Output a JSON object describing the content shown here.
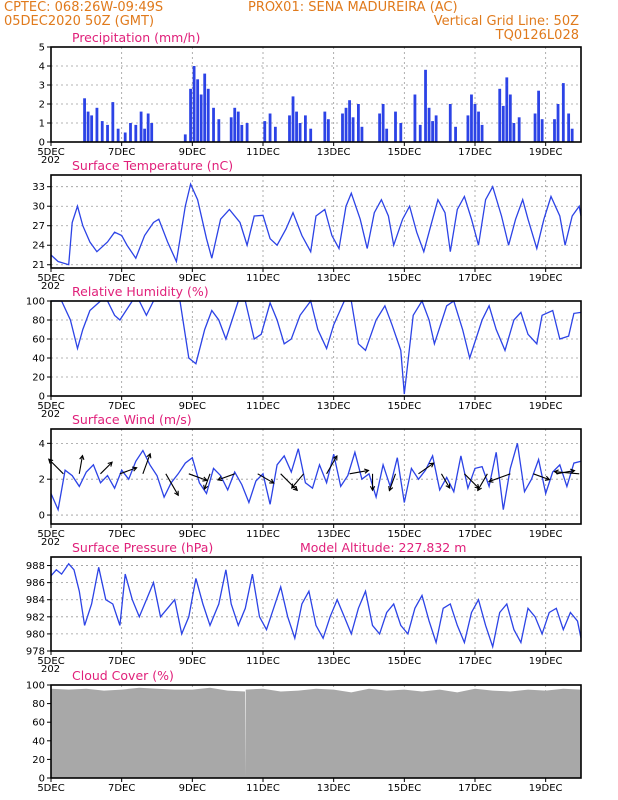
{
  "header": {
    "left_line1": "CPTEC:    068:26W-09:49S",
    "left_line2": "05DEC2020 50Z (GMT)",
    "center_line1": "PROX01: SENA MADUREIRA (AC)",
    "right_line2": "Vertical Grid Line: 50Z",
    "right_line3": "TQ0126L028"
  },
  "colors": {
    "header_text": "#e07a1c",
    "panel_title": "#e0207a",
    "series_line": "#2c43e6",
    "precip_bar": "#2c43e6",
    "wind_arrow": "#000000",
    "cloud_fill": "#a8a8a8"
  },
  "x_axis": {
    "tick_labels": [
      "5DEC",
      "7DEC",
      "9DEC",
      "11DEC",
      "13DEC",
      "15DEC",
      "17DEC",
      "19DEC"
    ],
    "tick_days": [
      5,
      7,
      9,
      11,
      13,
      15,
      17,
      19
    ],
    "year_fragment": "202",
    "start_day": 5,
    "end_day": 20
  },
  "chart_data": [
    {
      "type": "bar",
      "title": "Precipitation (mm/h)",
      "ylim": [
        0,
        5
      ],
      "yticks": [
        0,
        1,
        2,
        3,
        4,
        5
      ],
      "grid": true,
      "x": [
        5.95,
        6.05,
        6.15,
        6.3,
        6.45,
        6.6,
        6.75,
        6.9,
        7.1,
        7.25,
        7.4,
        7.55,
        7.65,
        7.75,
        7.85,
        8.8,
        8.95,
        9.05,
        9.15,
        9.25,
        9.35,
        9.45,
        9.6,
        9.75,
        10.1,
        10.2,
        10.3,
        10.4,
        10.55,
        11.05,
        11.2,
        11.35,
        11.75,
        11.85,
        11.95,
        12.05,
        12.2,
        12.35,
        12.75,
        12.85,
        13.25,
        13.35,
        13.45,
        13.55,
        13.7,
        13.8,
        14.3,
        14.4,
        14.5,
        14.75,
        14.9,
        15.3,
        15.45,
        15.6,
        15.7,
        15.8,
        15.9,
        16.3,
        16.45,
        16.8,
        16.9,
        17.0,
        17.1,
        17.2,
        17.7,
        17.8,
        17.9,
        18.0,
        18.1,
        18.25,
        18.7,
        18.8,
        18.9,
        19.25,
        19.35,
        19.5,
        19.65,
        19.75
      ],
      "values": [
        2.3,
        1.6,
        1.4,
        1.8,
        1.1,
        0.9,
        2.1,
        0.7,
        0.5,
        1.0,
        0.9,
        1.6,
        0.7,
        1.5,
        1.0,
        0.4,
        2.8,
        4.0,
        3.3,
        2.5,
        3.6,
        2.8,
        1.8,
        1.2,
        1.3,
        1.8,
        1.6,
        0.9,
        1.0,
        1.1,
        1.5,
        0.8,
        1.4,
        2.4,
        1.6,
        1.0,
        1.4,
        0.7,
        1.6,
        1.2,
        1.5,
        1.8,
        2.2,
        1.3,
        2.0,
        0.8,
        1.5,
        2.0,
        0.7,
        1.6,
        1.0,
        2.5,
        0.9,
        3.8,
        1.8,
        1.1,
        1.4,
        2.0,
        0.8,
        1.4,
        2.5,
        2.0,
        1.6,
        0.9,
        2.8,
        1.9,
        3.4,
        2.5,
        1.0,
        1.3,
        1.5,
        2.7,
        1.2,
        1.2,
        2.0,
        3.1,
        1.5,
        0.7
      ]
    },
    {
      "type": "line",
      "title": "Surface Temperature (nC)",
      "ylim": [
        20.5,
        34.8
      ],
      "yticks": [
        21,
        24,
        27,
        30,
        33
      ],
      "grid": true,
      "x": [
        5.0,
        5.2,
        5.5,
        5.6,
        5.75,
        5.9,
        6.1,
        6.3,
        6.6,
        6.8,
        7.0,
        7.15,
        7.4,
        7.65,
        7.9,
        8.05,
        8.3,
        8.55,
        8.8,
        8.95,
        9.15,
        9.4,
        9.55,
        9.8,
        10.05,
        10.35,
        10.55,
        10.75,
        11.0,
        11.2,
        11.4,
        11.65,
        11.85,
        12.1,
        12.35,
        12.5,
        12.75,
        12.95,
        13.15,
        13.35,
        13.5,
        13.75,
        13.95,
        14.15,
        14.35,
        14.55,
        14.7,
        14.95,
        15.15,
        15.35,
        15.55,
        15.75,
        15.95,
        16.15,
        16.3,
        16.5,
        16.7,
        16.9,
        17.1,
        17.3,
        17.5,
        17.75,
        17.95,
        18.15,
        18.35,
        18.5,
        18.75,
        18.95,
        19.15,
        19.4,
        19.55,
        19.75,
        19.95,
        20.0
      ],
      "values": [
        22.5,
        21.5,
        21.0,
        27.5,
        30.0,
        27.0,
        24.5,
        23.0,
        24.5,
        26.0,
        25.5,
        24.0,
        22.0,
        25.5,
        27.5,
        28.0,
        24.5,
        21.5,
        30.0,
        33.4,
        31.0,
        25.0,
        22.0,
        28.0,
        29.5,
        27.5,
        24.0,
        28.5,
        28.6,
        25.0,
        24.0,
        26.5,
        29.0,
        25.5,
        23.0,
        28.5,
        29.5,
        25.5,
        23.5,
        30.0,
        32.0,
        28.0,
        23.5,
        29.0,
        31.0,
        28.5,
        24.0,
        28.0,
        30.0,
        26.0,
        23.0,
        27.0,
        31.0,
        29.0,
        23.0,
        29.5,
        31.5,
        28.0,
        24.0,
        31.0,
        33.0,
        28.5,
        24.0,
        28.0,
        31.0,
        28.0,
        23.5,
        28.0,
        31.5,
        28.5,
        24.0,
        28.5,
        30.0,
        28.5
      ]
    },
    {
      "type": "line",
      "title": "Relative Humidity (%)",
      "ylim": [
        0,
        100
      ],
      "yticks": [
        0,
        20,
        40,
        60,
        80,
        100
      ],
      "grid": true,
      "x": [
        5.0,
        5.3,
        5.55,
        5.75,
        5.9,
        6.1,
        6.4,
        6.6,
        6.8,
        6.95,
        7.3,
        7.5,
        7.7,
        7.9,
        8.2,
        8.45,
        8.65,
        8.9,
        9.1,
        9.35,
        9.55,
        9.75,
        9.95,
        10.3,
        10.5,
        10.75,
        10.95,
        11.2,
        11.4,
        11.6,
        11.8,
        12.05,
        12.35,
        12.55,
        12.8,
        13.0,
        13.3,
        13.5,
        13.7,
        13.9,
        14.2,
        14.45,
        14.65,
        14.9,
        15.0,
        15.25,
        15.5,
        15.7,
        15.85,
        16.2,
        16.4,
        16.65,
        16.85,
        17.2,
        17.4,
        17.6,
        17.85,
        18.1,
        18.3,
        18.5,
        18.75,
        18.9,
        19.2,
        19.4,
        19.65,
        19.8,
        20.0
      ],
      "values": [
        100,
        100,
        80,
        50,
        70,
        90,
        100,
        100,
        85,
        80,
        100,
        100,
        85,
        100,
        100,
        100,
        100,
        40,
        34,
        70,
        90,
        80,
        60,
        100,
        100,
        60,
        65,
        98,
        80,
        55,
        60,
        85,
        100,
        70,
        50,
        75,
        100,
        100,
        55,
        48,
        80,
        95,
        75,
        48,
        2,
        85,
        100,
        80,
        55,
        95,
        100,
        70,
        40,
        80,
        95,
        70,
        48,
        80,
        88,
        65,
        55,
        85,
        90,
        60,
        63,
        87,
        88
      ]
    },
    {
      "type": "line",
      "title": "Surface Wind (m/s)",
      "ylim": [
        -0.5,
        4.8
      ],
      "yticks": [
        0,
        2,
        4
      ],
      "grid": true,
      "x": [
        5.0,
        5.2,
        5.4,
        5.6,
        5.8,
        6.0,
        6.2,
        6.4,
        6.6,
        6.8,
        7.0,
        7.2,
        7.4,
        7.6,
        7.8,
        8.0,
        8.2,
        8.4,
        8.6,
        8.8,
        9.0,
        9.2,
        9.4,
        9.6,
        9.8,
        10.0,
        10.2,
        10.4,
        10.6,
        10.8,
        11.0,
        11.2,
        11.4,
        11.6,
        11.8,
        12.0,
        12.2,
        12.4,
        12.6,
        12.8,
        13.0,
        13.2,
        13.4,
        13.6,
        13.8,
        14.0,
        14.2,
        14.4,
        14.6,
        14.8,
        15.0,
        15.2,
        15.4,
        15.6,
        15.8,
        16.0,
        16.2,
        16.4,
        16.6,
        16.8,
        17.0,
        17.2,
        17.4,
        17.6,
        17.8,
        18.0,
        18.2,
        18.4,
        18.6,
        18.8,
        19.0,
        19.2,
        19.4,
        19.6,
        19.8,
        20.0
      ],
      "values": [
        1.2,
        0.3,
        2.5,
        2.2,
        1.6,
        2.4,
        2.8,
        1.8,
        2.2,
        1.5,
        2.5,
        2.0,
        3.0,
        3.6,
        2.8,
        2.2,
        1.0,
        1.8,
        2.3,
        2.9,
        3.2,
        1.8,
        1.2,
        2.6,
        2.2,
        1.4,
        2.4,
        1.7,
        0.7,
        1.9,
        2.3,
        0.6,
        2.8,
        3.3,
        2.4,
        3.7,
        1.8,
        1.5,
        2.8,
        1.8,
        3.4,
        1.6,
        2.2,
        3.5,
        2.0,
        2.3,
        1.0,
        2.8,
        1.6,
        3.2,
        0.7,
        2.6,
        2.0,
        2.5,
        3.3,
        1.4,
        2.1,
        1.3,
        3.3,
        1.5,
        2.6,
        2.7,
        1.6,
        3.5,
        0.3,
        2.6,
        4.0,
        1.3,
        2.0,
        3.1,
        1.2,
        2.4,
        2.8,
        1.6,
        2.9,
        3.0
      ],
      "arrows": {
        "x": [
          5.35,
          5.8,
          6.4,
          6.95,
          7.6,
          8.25,
          8.9,
          9.5,
          10.2,
          10.85,
          11.5,
          12.15,
          12.8,
          13.45,
          14.1,
          14.75,
          15.4,
          16.05,
          16.7,
          17.35,
          18.0,
          18.65,
          19.3,
          19.95
        ],
        "speed": [
          1.8,
          1.5,
          1.2,
          1.4,
          1.9,
          2.4,
          1.6,
          1.2,
          1.4,
          1.5,
          2.2,
          1.5,
          1.8,
          1.6,
          1.2,
          1.4,
          1.5,
          1.2,
          1.8,
          1.6,
          2.1,
          1.3,
          1.5,
          2.4
        ],
        "direction_deg": [
          135,
          80,
          45,
          20,
          70,
          300,
          340,
          250,
          200,
          330,
          315,
          230,
          60,
          10,
          270,
          250,
          35,
          300,
          315,
          240,
          200,
          340,
          10,
          175
        ]
      }
    },
    {
      "type": "line",
      "title": "Surface Pressure (hPa)",
      "annotation": "Model Altitude: 227.832 m",
      "ylim": [
        978,
        989
      ],
      "yticks": [
        978,
        980,
        982,
        984,
        986,
        988
      ],
      "grid": true,
      "x": [
        5.0,
        5.15,
        5.3,
        5.5,
        5.65,
        5.8,
        5.95,
        6.15,
        6.35,
        6.55,
        6.75,
        6.95,
        7.1,
        7.3,
        7.5,
        7.7,
        7.9,
        8.1,
        8.3,
        8.5,
        8.7,
        8.9,
        9.1,
        9.3,
        9.5,
        9.75,
        9.95,
        10.1,
        10.3,
        10.5,
        10.7,
        10.9,
        11.1,
        11.3,
        11.5,
        11.7,
        11.9,
        12.1,
        12.3,
        12.5,
        12.7,
        12.9,
        13.1,
        13.3,
        13.5,
        13.7,
        13.9,
        14.1,
        14.3,
        14.5,
        14.7,
        14.9,
        15.1,
        15.3,
        15.5,
        15.7,
        15.9,
        16.1,
        16.3,
        16.5,
        16.7,
        16.9,
        17.1,
        17.3,
        17.5,
        17.7,
        17.9,
        18.1,
        18.3,
        18.5,
        18.7,
        18.9,
        19.1,
        19.3,
        19.5,
        19.7,
        19.9,
        20.0
      ],
      "values": [
        986.8,
        987.5,
        987.0,
        988.2,
        987.5,
        985.0,
        981.0,
        983.5,
        987.8,
        984.0,
        983.5,
        981.0,
        987.0,
        984.0,
        982.0,
        984.0,
        986.0,
        982.0,
        983.0,
        984.0,
        980.0,
        982.0,
        986.5,
        983.5,
        981.0,
        983.5,
        987.5,
        983.5,
        981.0,
        983.0,
        987.0,
        982.0,
        980.5,
        983.0,
        985.5,
        982.0,
        979.5,
        983.5,
        985.0,
        981.0,
        979.5,
        982.0,
        984.0,
        982.0,
        980.0,
        983.0,
        985.0,
        981.0,
        980.0,
        982.5,
        983.5,
        981.0,
        980.0,
        983.0,
        984.5,
        981.5,
        979.0,
        983.0,
        983.5,
        981.0,
        979.0,
        982.5,
        984.0,
        981.0,
        978.5,
        982.5,
        983.5,
        980.5,
        979.0,
        983.0,
        982.0,
        980.0,
        982.5,
        983.0,
        980.5,
        982.5,
        981.5,
        979.5
      ]
    },
    {
      "type": "area",
      "title": "Cloud Cover (%)",
      "ylim": [
        0,
        100
      ],
      "yticks": [
        0,
        20,
        40,
        60,
        80,
        100
      ],
      "grid": true,
      "x": [
        5.0,
        5.5,
        6.0,
        6.5,
        7.0,
        7.5,
        8.0,
        8.5,
        9.0,
        9.5,
        10.0,
        10.49,
        10.5,
        10.51,
        11.0,
        11.5,
        12.0,
        12.5,
        13.0,
        13.5,
        14.0,
        14.5,
        15.0,
        15.5,
        16.0,
        16.5,
        17.0,
        17.5,
        18.0,
        18.5,
        19.0,
        19.5,
        20.0
      ],
      "values": [
        96,
        95,
        96,
        94,
        95,
        97,
        96,
        95,
        95,
        97,
        94,
        93,
        0,
        95,
        96,
        93,
        94,
        96,
        95,
        92,
        96,
        94,
        95,
        93,
        95,
        92,
        96,
        94,
        93,
        95,
        94,
        96,
        95
      ]
    }
  ]
}
